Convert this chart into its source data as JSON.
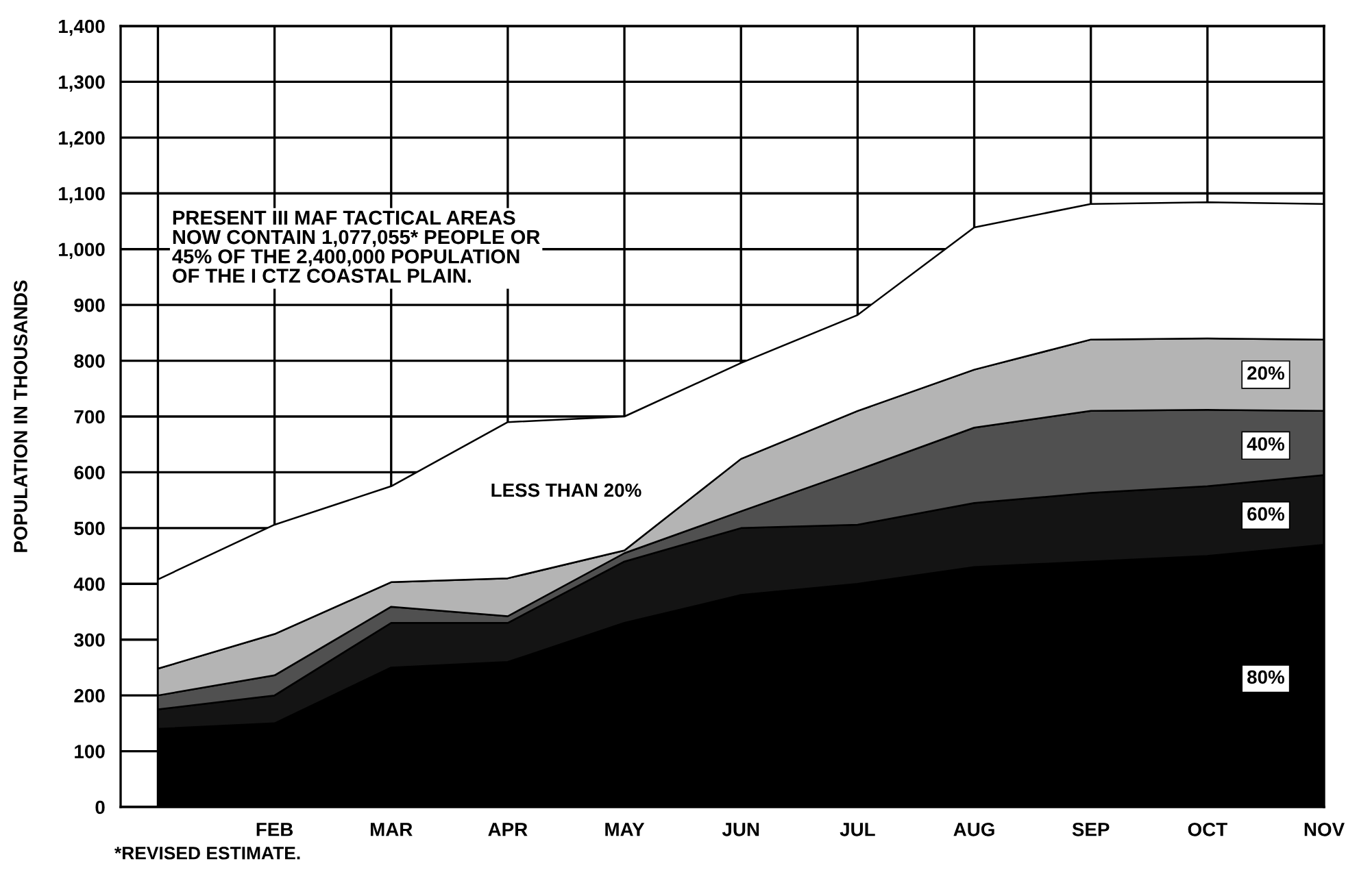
{
  "chart_data": {
    "type": "area",
    "stacked": true,
    "ylabel": "POPULATION IN THOUSANDS",
    "categories": [
      null,
      "FEB",
      "MAR",
      "APR",
      "MAY",
      "JUN",
      "JUL",
      "AUG",
      "SEP",
      "OCT",
      "NOV"
    ],
    "ylim": [
      0,
      1400
    ],
    "yticks": [
      0,
      100,
      200,
      300,
      400,
      500,
      600,
      700,
      800,
      900,
      {
        "value": 1000,
        "label": "1,000"
      },
      {
        "value": 1100,
        "label": "1,100"
      },
      {
        "value": 1200,
        "label": "1,200"
      },
      {
        "value": 1300,
        "label": "1,300"
      },
      {
        "value": 1400,
        "label": "1,400"
      }
    ],
    "grid": true,
    "series": [
      {
        "name": "80%",
        "color": "#000000",
        "values": [
          140,
          150,
          250,
          260,
          330,
          380,
          400,
          430,
          440,
          450,
          470
        ]
      },
      {
        "name": "60%",
        "color": "#141414",
        "values": [
          35,
          50,
          80,
          70,
          110,
          120,
          106,
          115,
          123,
          125,
          125
        ]
      },
      {
        "name": "40%",
        "color": "#505050",
        "values": [
          25,
          36,
          29,
          12,
          15,
          30,
          98,
          135,
          147,
          137,
          115
        ]
      },
      {
        "name": "20%",
        "color": "#b4b4b4",
        "values": [
          48,
          74,
          44,
          68,
          5,
          94,
          106,
          104,
          128,
          128,
          128
        ]
      },
      {
        "name": "LESS THAN 20%",
        "color": "#ffffff",
        "values": [
          160,
          196,
          172,
          280,
          240,
          172,
          172,
          255,
          243,
          244,
          243
        ]
      }
    ],
    "annotations": [
      "PRESENT III MAF TACTICAL AREAS\nNOW CONTAIN 1,077,055* PEOPLE OR\n45% OF THE 2,400,000 POPULATION\nOF THE I CTZ COASTAL PLAIN.",
      "*REVISED ESTIMATE."
    ]
  }
}
